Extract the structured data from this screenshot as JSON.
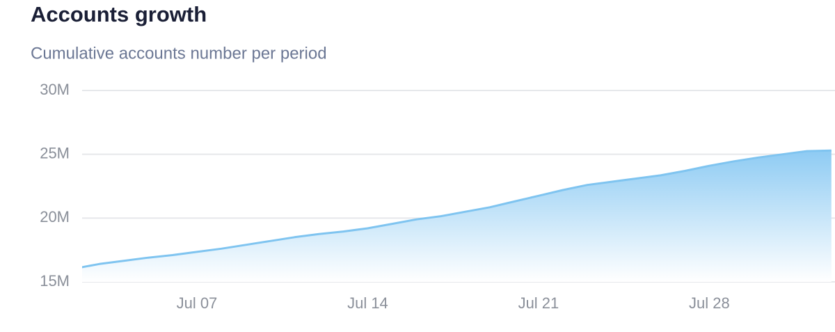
{
  "chart_data": {
    "type": "area",
    "title": "Accounts growth",
    "subtitle": "Cumulative accounts number per period",
    "categories": [
      null,
      null,
      null,
      null,
      null,
      "Jul 07",
      null,
      null,
      null,
      null,
      null,
      null,
      "Jul 14",
      null,
      null,
      null,
      null,
      null,
      null,
      "Jul 21",
      null,
      null,
      null,
      null,
      null,
      null,
      "Jul 28",
      null,
      null,
      null,
      null,
      null
    ],
    "values": [
      16.05,
      16.4,
      16.65,
      16.9,
      17.1,
      17.35,
      17.6,
      17.9,
      18.2,
      18.5,
      18.75,
      18.95,
      19.2,
      19.55,
      19.9,
      20.15,
      20.5,
      20.85,
      21.3,
      21.75,
      22.2,
      22.6,
      22.85,
      23.1,
      23.35,
      23.7,
      24.1,
      24.45,
      24.75,
      25.0,
      25.25,
      25.3
    ],
    "color": "#7fc4f0",
    "ylim": [
      15,
      30
    ],
    "yticks": [
      {
        "value": 15,
        "label": "15M"
      },
      {
        "value": 20,
        "label": "20M"
      },
      {
        "value": 25,
        "label": "25M"
      },
      {
        "value": 30,
        "label": "30M"
      }
    ],
    "grid": true
  }
}
